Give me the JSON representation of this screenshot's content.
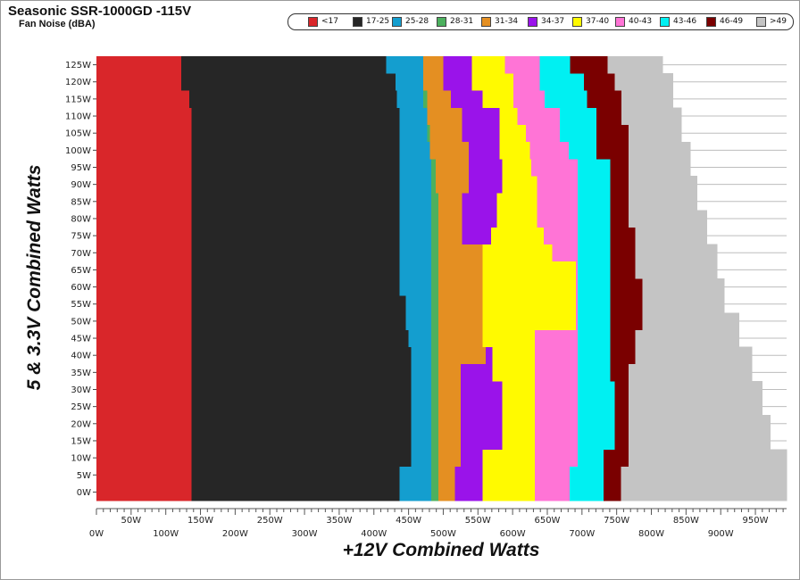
{
  "chart_data": {
    "type": "heatmap",
    "title": "Seasonic SSR-1000GD -115V",
    "subtitle": "Fan Noise (dBA)",
    "xlabel": "+12V Combined Watts",
    "ylabel": "5 & 3.3V Combined Watts",
    "xlim": [
      0,
      995
    ],
    "ylim": [
      0,
      127
    ],
    "x_ticks": [
      "0W",
      "50W",
      "100W",
      "150W",
      "200W",
      "250W",
      "300W",
      "350W",
      "400W",
      "450W",
      "500W",
      "550W",
      "600W",
      "650W",
      "700W",
      "750W",
      "800W",
      "850W",
      "900W",
      "950W"
    ],
    "y_ticks": [
      "0W",
      "5W",
      "10W",
      "15W",
      "20W",
      "25W",
      "30W",
      "35W",
      "40W",
      "45W",
      "50W",
      "55W",
      "60W",
      "65W",
      "70W",
      "75W",
      "80W",
      "85W",
      "90W",
      "95W",
      "100W",
      "105W",
      "110W",
      "115W",
      "120W",
      "125W"
    ],
    "legend": [
      {
        "label": "<17",
        "color": "#d9262a"
      },
      {
        "label": "17-25",
        "color": "#262626"
      },
      {
        "label": "25-28",
        "color": "#149ecf"
      },
      {
        "label": "28-31",
        "color": "#4cb05e"
      },
      {
        "label": "31-34",
        "color": "#e48f22"
      },
      {
        "label": "34-37",
        "color": "#9a13ea"
      },
      {
        "label": "37-40",
        "color": "#fffa00"
      },
      {
        "label": "40-43",
        "color": "#ff74d6"
      },
      {
        "label": "43-46",
        "color": "#00f0f2"
      },
      {
        "label": "46-49",
        "color": "#7a0000"
      },
      {
        "label": ">49",
        "color": "#c4c4c4"
      }
    ],
    "y_rows": [
      0,
      5,
      10,
      15,
      20,
      25,
      30,
      35,
      40,
      45,
      50,
      55,
      60,
      65,
      70,
      75,
      80,
      85,
      90,
      95,
      100,
      105,
      110,
      115,
      120,
      125
    ],
    "boundaries_x_watts": {
      "b1": [
        137,
        137,
        137,
        137,
        137,
        137,
        137,
        137,
        137,
        137,
        137,
        137,
        137,
        137,
        137,
        137,
        137,
        137,
        137,
        137,
        137,
        137,
        137,
        134,
        122,
        122
      ],
      "b2": [
        437,
        437,
        454,
        454,
        454,
        454,
        454,
        454,
        454,
        450,
        446,
        446,
        437,
        437,
        437,
        437,
        437,
        437,
        437,
        437,
        437,
        437,
        437,
        433,
        431,
        418
      ],
      "b3": [
        483,
        483,
        483,
        483,
        483,
        483,
        483,
        483,
        483,
        483,
        483,
        483,
        483,
        483,
        483,
        483,
        483,
        483,
        483,
        483,
        483,
        477,
        477,
        471,
        471,
        471
      ],
      "b4": [
        493,
        493,
        493,
        493,
        493,
        493,
        493,
        493,
        493,
        493,
        493,
        493,
        493,
        493,
        493,
        493,
        493,
        493,
        489,
        489,
        481,
        481,
        477,
        477,
        471,
        471
      ],
      "b5": [
        517,
        517,
        525,
        525,
        525,
        525,
        525,
        525,
        561,
        561,
        561,
        585,
        589,
        593,
        593,
        527,
        527,
        527,
        537,
        537,
        537,
        527,
        527,
        511,
        500,
        500
      ],
      "b6": [
        557,
        557,
        557,
        585,
        585,
        585,
        585,
        571,
        571,
        557,
        557,
        557,
        557,
        557,
        557,
        569,
        577,
        577,
        585,
        585,
        581,
        581,
        581,
        557,
        541,
        541
      ],
      "b7": [
        632,
        632,
        632,
        632,
        632,
        632,
        632,
        632,
        632,
        632,
        691,
        691,
        691,
        691,
        657,
        645,
        635,
        635,
        635,
        627,
        625,
        619,
        607,
        601,
        601,
        589
      ],
      "b8": [
        682,
        682,
        694,
        694,
        694,
        694,
        694,
        694,
        694,
        694,
        694,
        694,
        694,
        694,
        694,
        694,
        694,
        694,
        694,
        694,
        681,
        668,
        668,
        646,
        639,
        639
      ],
      "b9": [
        731,
        731,
        731,
        747,
        747,
        747,
        747,
        741,
        741,
        741,
        741,
        741,
        741,
        741,
        741,
        741,
        741,
        741,
        741,
        741,
        721,
        721,
        721,
        707,
        703,
        683
      ],
      "b10": [
        756,
        756,
        767,
        767,
        767,
        767,
        767,
        767,
        777,
        777,
        787,
        787,
        787,
        777,
        777,
        777,
        767,
        767,
        767,
        767,
        767,
        767,
        757,
        757,
        747,
        737
      ],
      "b11": [
        995,
        995,
        995,
        971,
        971,
        960,
        960,
        945,
        945,
        926,
        926,
        905,
        905,
        895,
        895,
        880,
        880,
        866,
        866,
        856,
        856,
        843,
        843,
        831,
        831,
        816
      ]
    }
  }
}
